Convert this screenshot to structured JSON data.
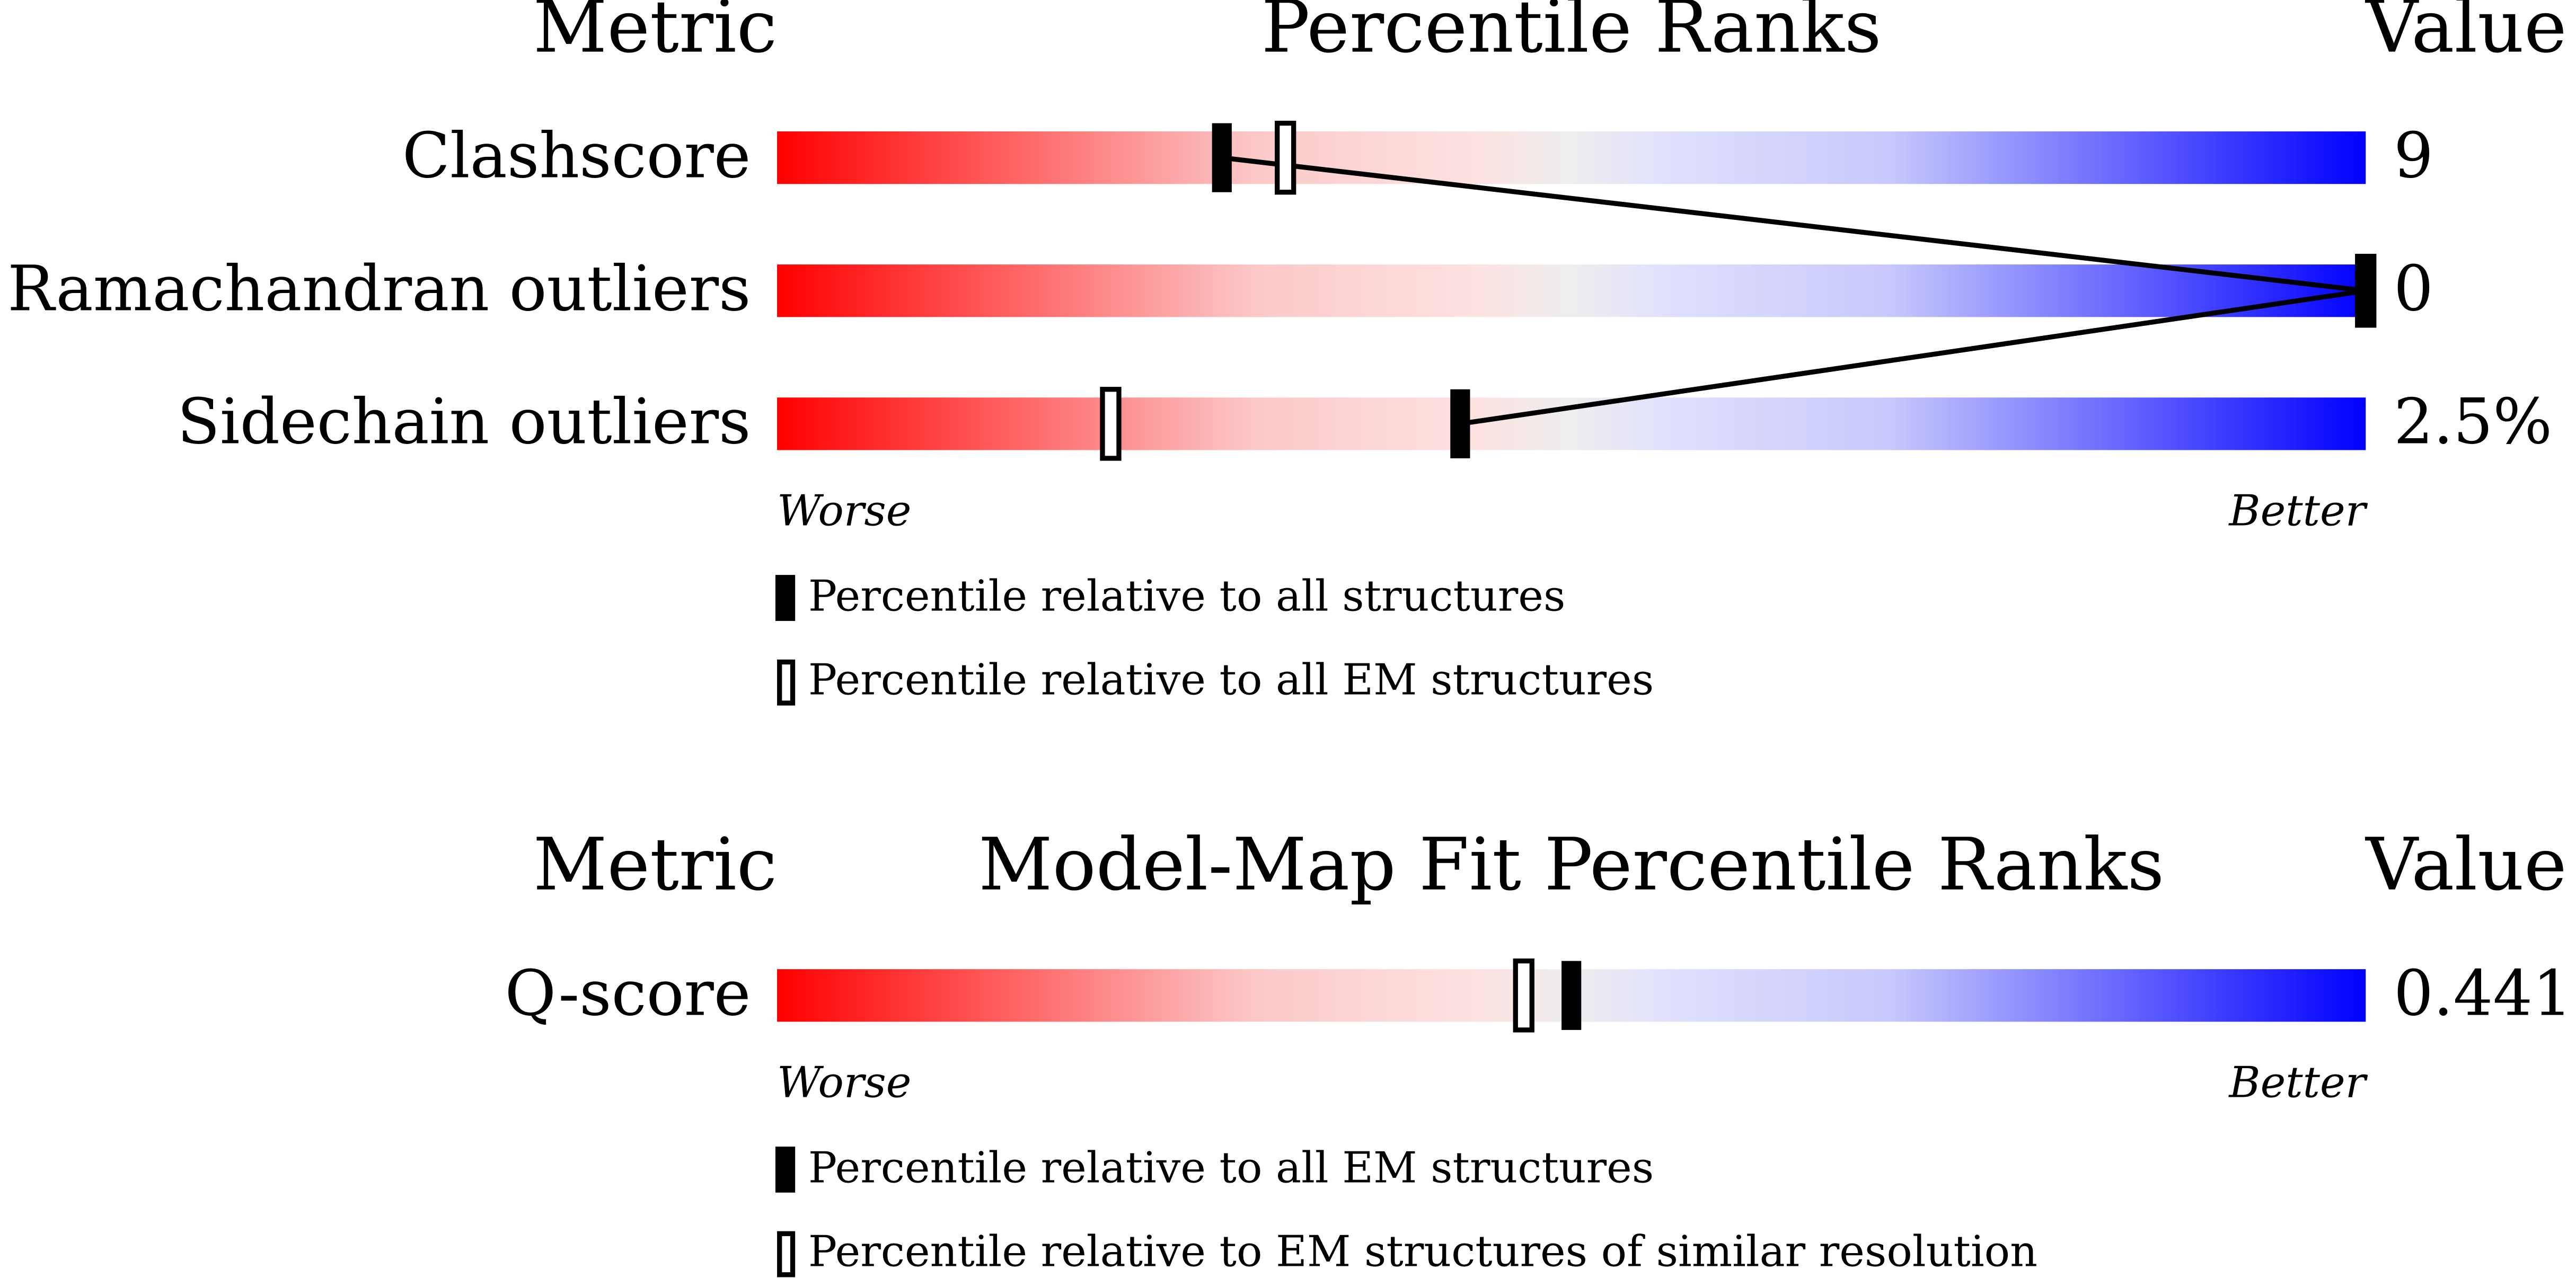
{
  "chart_data": [
    {
      "type": "percentile-slider",
      "header": {
        "metric": "Metric",
        "title": "Percentile Ranks",
        "value": "Value"
      },
      "metrics": [
        "Clashscore",
        "Ramachandran outliers",
        "Sidechain outliers"
      ],
      "metric_values": [
        "9",
        "0",
        "2.5%"
      ],
      "series": [
        {
          "name": "Percentile relative to all structures",
          "style": "filled",
          "color": "#000000",
          "values": [
            28,
            100,
            43
          ]
        },
        {
          "name": "Percentile relative to all EM structures",
          "style": "open",
          "color": "#000000",
          "values": [
            32,
            100,
            21
          ]
        }
      ],
      "xlim": [
        0,
        100
      ],
      "worse_label": "Worse",
      "better_label": "Better",
      "connect_series": 0
    },
    {
      "type": "percentile-slider",
      "header": {
        "metric": "Metric",
        "title": "Model-Map Fit Percentile Ranks",
        "value": "Value"
      },
      "metrics": [
        "Q-score"
      ],
      "metric_values": [
        "0.441"
      ],
      "series": [
        {
          "name": "Percentile relative to all EM structures",
          "style": "filled",
          "color": "#000000",
          "values": [
            50
          ]
        },
        {
          "name": "Percentile relative to EM structures of similar resolution",
          "style": "open",
          "color": "#000000",
          "values": [
            47
          ]
        }
      ],
      "xlim": [
        0,
        100
      ],
      "worse_label": "Worse",
      "better_label": "Better",
      "connect_series": 0
    }
  ]
}
